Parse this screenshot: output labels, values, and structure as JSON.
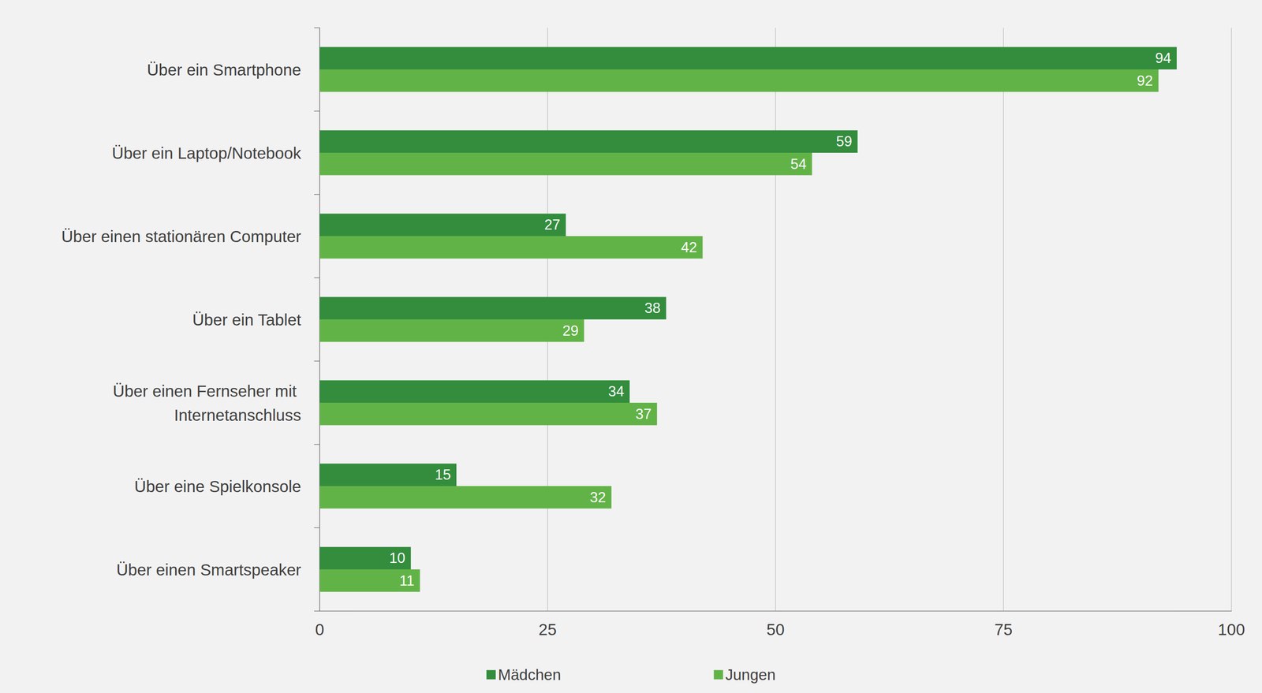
{
  "chart_data": {
    "type": "bar",
    "orientation": "horizontal",
    "categories": [
      "Über ein Smartphone",
      "Über ein Laptop/Notebook",
      "Über einen stationären Computer",
      "Über ein Tablet",
      "Über einen Fernseher mit Internetanschluss",
      "Über eine Spielkonsole",
      "Über einen Smartspeaker"
    ],
    "series": [
      {
        "name": "Mädchen",
        "color": "#338d3d",
        "values": [
          94,
          59,
          27,
          38,
          34,
          15,
          10
        ]
      },
      {
        "name": "Jungen",
        "color": "#62b347",
        "values": [
          92,
          54,
          42,
          29,
          37,
          32,
          11
        ]
      }
    ],
    "xlim": [
      0,
      100
    ],
    "xticks": [
      0,
      25,
      50,
      75,
      100
    ],
    "grid": true,
    "data_labels": true,
    "legend": "bottom"
  }
}
